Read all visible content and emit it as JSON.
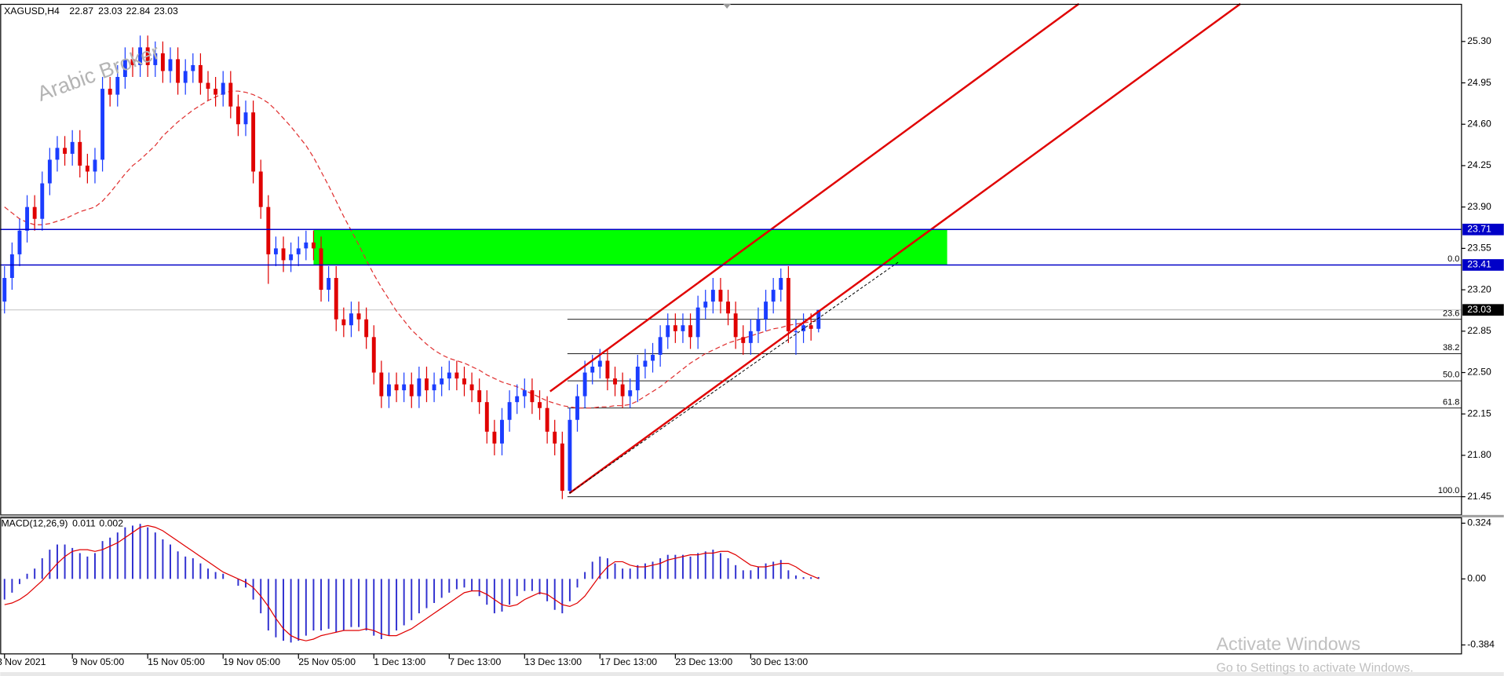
{
  "chart_data": {
    "type": "candlestick",
    "symbol": "XAGUSD,H4",
    "watermark": "Arabic Broker",
    "categories": [
      "3 Nov 2021",
      null,
      null,
      null,
      null,
      null,
      null,
      null,
      null,
      "9 Nov 05:00",
      null,
      null,
      null,
      null,
      null,
      null,
      null,
      null,
      null,
      "15 Nov 05:00",
      null,
      null,
      null,
      null,
      null,
      null,
      null,
      null,
      null,
      "19 Nov 05:00",
      null,
      null,
      null,
      null,
      null,
      null,
      null,
      null,
      null,
      "25 Nov 05:00",
      null,
      null,
      null,
      null,
      null,
      null,
      null,
      null,
      null,
      "1 Dec 13:00",
      null,
      null,
      null,
      null,
      null,
      null,
      null,
      null,
      null,
      "7 Dec 13:00",
      null,
      null,
      null,
      null,
      null,
      null,
      null,
      null,
      null,
      "13 Dec 13:00",
      null,
      null,
      null,
      null,
      null,
      null,
      null,
      null,
      null,
      "17 Dec 13:00",
      null,
      null,
      null,
      null,
      null,
      null,
      null,
      null,
      null,
      "23 Dec 13:00",
      null,
      null,
      null,
      null,
      null,
      null,
      null,
      null,
      null,
      "30 Dec 13:00",
      null,
      null,
      null,
      null,
      null,
      null,
      null,
      null,
      null
    ],
    "open": [
      23.1,
      23.3,
      23.5,
      23.7,
      23.9,
      23.8,
      24.1,
      24.3,
      24.4,
      24.35,
      24.45,
      24.25,
      24.2,
      24.3,
      24.9,
      24.85,
      25,
      25.15,
      25.1,
      25.25,
      25.1,
      25.2,
      25.05,
      25.15,
      24.95,
      25.05,
      25.1,
      24.95,
      24.9,
      24.85,
      24.95,
      24.75,
      24.6,
      24.7,
      24.2,
      23.9,
      23.5,
      23.55,
      23.45,
      23.5,
      23.55,
      23.6,
      23.55,
      23.2,
      23.3,
      22.95,
      22.9,
      23,
      22.95,
      22.8,
      22.5,
      22.3,
      22.4,
      22.35,
      22.4,
      22.3,
      22.45,
      22.35,
      22.4,
      22.45,
      22.5,
      22.45,
      22.4,
      22.35,
      22.25,
      22,
      21.9,
      22.1,
      22.25,
      22.3,
      22.35,
      22.25,
      22.2,
      22,
      21.9,
      21.5,
      22.1,
      22.3,
      22.5,
      22.55,
      22.6,
      22.45,
      22.4,
      22.3,
      22.35,
      22.55,
      22.6,
      22.65,
      22.8,
      22.9,
      22.85,
      22.9,
      22.8,
      23.05,
      23.1,
      23.2,
      23.1,
      23,
      22.8,
      22.75,
      22.85,
      22.95,
      23.1,
      23.2,
      23.3,
      22.85,
      22.85,
      22.9,
      22.87
    ],
    "high": [
      23.4,
      23.6,
      23.8,
      24,
      24,
      24.2,
      24.4,
      24.5,
      24.5,
      24.55,
      24.55,
      24.35,
      24.4,
      25,
      25,
      25.1,
      25.25,
      25.25,
      25.35,
      25.35,
      25.3,
      25.3,
      25.25,
      25.25,
      25.15,
      25.2,
      25.2,
      25.05,
      25,
      25.05,
      25.05,
      24.85,
      24.8,
      24.8,
      24.3,
      24,
      23.65,
      23.65,
      23.6,
      23.65,
      23.7,
      23.7,
      23.65,
      23.4,
      23.4,
      23.05,
      23.1,
      23.1,
      23.05,
      22.9,
      22.6,
      22.5,
      22.5,
      22.5,
      22.5,
      22.55,
      22.55,
      22.5,
      22.55,
      22.6,
      22.6,
      22.55,
      22.5,
      22.45,
      22.35,
      22.1,
      22.2,
      22.35,
      22.4,
      22.45,
      22.45,
      22.35,
      22.3,
      22.1,
      22,
      22.2,
      22.4,
      22.6,
      22.65,
      22.7,
      22.7,
      22.55,
      22.5,
      22.45,
      22.65,
      22.7,
      22.75,
      22.9,
      23,
      23,
      23,
      23,
      23.15,
      23.2,
      23.3,
      23.3,
      23.2,
      23.1,
      22.9,
      22.95,
      23.05,
      23.2,
      23.3,
      23.38,
      23.4,
      22.95,
      23,
      23,
      23.03
    ],
    "low": [
      23,
      23.2,
      23.4,
      23.6,
      23.7,
      23.7,
      24,
      24.2,
      24.25,
      24.25,
      24.15,
      24.1,
      24.1,
      24.2,
      24.75,
      24.75,
      24.9,
      25,
      25,
      25,
      25,
      24.95,
      24.95,
      24.85,
      24.85,
      24.95,
      24.85,
      24.8,
      24.75,
      24.75,
      24.65,
      24.5,
      24.5,
      24.1,
      23.8,
      23.25,
      23.4,
      23.35,
      23.35,
      23.4,
      23.45,
      23.45,
      23.1,
      23.1,
      22.85,
      22.8,
      22.8,
      22.85,
      22.7,
      22.4,
      22.2,
      22.2,
      22.25,
      22.25,
      22.2,
      22.2,
      22.25,
      22.25,
      22.3,
      22.35,
      22.35,
      22.3,
      22.25,
      22.15,
      21.9,
      21.8,
      21.8,
      22,
      22.15,
      22.2,
      22.15,
      22.1,
      21.9,
      21.8,
      21.43,
      21.48,
      22,
      22.2,
      22.4,
      22.45,
      22.35,
      22.3,
      22.2,
      22.2,
      22.25,
      22.45,
      22.5,
      22.55,
      22.7,
      22.75,
      22.75,
      22.7,
      22.7,
      22.95,
      23,
      23,
      22.9,
      22.7,
      22.65,
      22.65,
      22.75,
      22.85,
      23,
      23.1,
      22.75,
      22.65,
      22.75,
      22.77,
      22.84
    ],
    "close": [
      23.3,
      23.5,
      23.7,
      23.9,
      23.8,
      24.1,
      24.3,
      24.4,
      24.35,
      24.45,
      24.25,
      24.2,
      24.3,
      24.9,
      24.85,
      25,
      25.15,
      25.1,
      25.25,
      25.1,
      25.2,
      25.05,
      25.15,
      24.95,
      25.05,
      25.1,
      24.95,
      24.9,
      24.85,
      24.95,
      24.75,
      24.6,
      24.7,
      24.2,
      23.9,
      23.5,
      23.55,
      23.45,
      23.5,
      23.55,
      23.6,
      23.55,
      23.2,
      23.3,
      22.95,
      22.9,
      23,
      22.95,
      22.8,
      22.5,
      22.3,
      22.4,
      22.35,
      22.4,
      22.3,
      22.45,
      22.35,
      22.4,
      22.45,
      22.5,
      22.45,
      22.4,
      22.35,
      22.25,
      22,
      21.9,
      22.1,
      22.25,
      22.3,
      22.35,
      22.25,
      22.2,
      22,
      21.9,
      21.5,
      22.1,
      22.3,
      22.5,
      22.55,
      22.6,
      22.45,
      22.4,
      22.3,
      22.35,
      22.55,
      22.6,
      22.65,
      22.8,
      22.9,
      22.85,
      22.9,
      22.8,
      23.05,
      23.1,
      23.2,
      23.1,
      23,
      22.8,
      22.75,
      22.85,
      22.95,
      23.1,
      23.2,
      23.3,
      22.85,
      22.85,
      22.9,
      22.87,
      23.03
    ],
    "up_color": "#1b3dff",
    "down_color": "#e00000",
    "ma": {
      "color": "#e03030",
      "values": [
        23.9,
        23.85,
        23.8,
        23.77,
        23.75,
        23.75,
        23.76,
        23.78,
        23.8,
        23.83,
        23.86,
        23.88,
        23.9,
        23.95,
        24.02,
        24.1,
        24.18,
        24.25,
        24.3,
        24.36,
        24.42,
        24.5,
        24.56,
        24.62,
        24.67,
        24.72,
        24.76,
        24.8,
        24.83,
        24.86,
        24.88,
        24.88,
        24.87,
        24.85,
        24.82,
        24.78,
        24.72,
        24.65,
        24.58,
        24.5,
        24.42,
        24.32,
        24.2,
        24.08,
        23.95,
        23.82,
        23.7,
        23.58,
        23.45,
        23.33,
        23.22,
        23.12,
        23.02,
        22.94,
        22.86,
        22.8,
        22.74,
        22.69,
        22.65,
        22.62,
        22.6,
        22.58,
        22.55,
        22.52,
        22.48,
        22.45,
        22.42,
        22.4,
        22.38,
        22.35,
        22.32,
        22.29,
        22.26,
        22.24,
        22.22,
        22.21,
        22.2,
        22.2,
        22.2,
        22.21,
        22.21,
        22.22,
        22.22,
        22.23,
        22.26,
        22.3,
        22.34,
        22.38,
        22.43,
        22.48,
        22.53,
        22.58,
        22.62,
        22.66,
        22.69,
        22.72,
        22.75,
        22.77,
        22.79,
        22.81,
        22.83,
        22.85,
        22.87,
        22.88,
        22.9,
        22.91,
        22.92,
        22.93,
        22.94
      ]
    },
    "ylim": [
      21.3,
      25.61
    ],
    "yticks": [
      {
        "value": 25.3,
        "label": "25.30"
      },
      24.95,
      {
        "value": 24.6,
        "label": "24.60"
      },
      24.25,
      {
        "value": 23.9,
        "label": "23.90"
      },
      23.55,
      {
        "value": 23.2,
        "label": "23.20"
      },
      22.85,
      {
        "value": 22.5,
        "label": "22.50"
      },
      22.15,
      {
        "value": 21.8,
        "label": "21.80"
      },
      21.45
    ],
    "price_lines": {
      "color": "#0000c8",
      "values": [
        23.71,
        23.41
      ]
    },
    "zone_color": "#00ff00",
    "last_price": 23.03,
    "fibonacci": {
      "color": "#000000",
      "levels": [
        {
          "label": "0.0",
          "price": 23.41
        },
        {
          "label": "23.6",
          "price": 22.95
        },
        {
          "label": "38.2",
          "price": 22.66
        },
        {
          "label": "50.0",
          "price": 22.43
        },
        {
          "label": "61.8",
          "price": 22.2
        },
        {
          "label": "100.0",
          "price": 21.45
        }
      ]
    },
    "macd": {
      "title": "MACD(12,26,9)",
      "ylim": [
        -0.436,
        0.358
      ],
      "yticks": [
        0.324,
        {
          "value": 0,
          "label": "0.00"
        },
        -0.384
      ],
      "histogram": {
        "color": "#3030d0",
        "values": [
          -0.12,
          -0.08,
          -0.03,
          0.03,
          0.06,
          0.12,
          0.17,
          0.2,
          0.2,
          0.18,
          0.15,
          0.13,
          0.15,
          0.22,
          0.24,
          0.27,
          0.3,
          0.31,
          0.32,
          0.3,
          0.27,
          0.23,
          0.2,
          0.16,
          0.13,
          0.12,
          0.09,
          0.06,
          0.04,
          0.03,
          0,
          -0.04,
          -0.05,
          -0.12,
          -0.2,
          -0.3,
          -0.34,
          -0.36,
          -0.37,
          -0.36,
          -0.33,
          -0.3,
          -0.3,
          -0.29,
          -0.31,
          -0.3,
          -0.28,
          -0.28,
          -0.3,
          -0.33,
          -0.35,
          -0.33,
          -0.3,
          -0.27,
          -0.24,
          -0.2,
          -0.17,
          -0.14,
          -0.11,
          -0.08,
          -0.06,
          -0.05,
          -0.07,
          -0.1,
          -0.15,
          -0.2,
          -0.19,
          -0.15,
          -0.1,
          -0.07,
          -0.07,
          -0.09,
          -0.13,
          -0.18,
          -0.2,
          -0.13,
          -0.05,
          0.04,
          0.1,
          0.13,
          0.12,
          0.09,
          0.06,
          0.06,
          0.08,
          0.09,
          0.1,
          0.12,
          0.14,
          0.14,
          0.14,
          0.13,
          0.15,
          0.16,
          0.17,
          0.15,
          0.12,
          0.08,
          0.05,
          0.05,
          0.07,
          0.09,
          0.1,
          0.11,
          0.05,
          0.02,
          0.01,
          0.01,
          0.011
        ]
      },
      "signal": {
        "color": "#e00000",
        "values": [
          -0.15,
          -0.14,
          -0.12,
          -0.09,
          -0.05,
          -0.01,
          0.04,
          0.09,
          0.13,
          0.16,
          0.17,
          0.17,
          0.16,
          0.17,
          0.19,
          0.21,
          0.24,
          0.27,
          0.3,
          0.31,
          0.3,
          0.28,
          0.25,
          0.22,
          0.19,
          0.16,
          0.13,
          0.1,
          0.07,
          0.04,
          0.02,
          0,
          -0.02,
          -0.05,
          -0.1,
          -0.16,
          -0.23,
          -0.29,
          -0.33,
          -0.35,
          -0.36,
          -0.35,
          -0.33,
          -0.32,
          -0.31,
          -0.3,
          -0.3,
          -0.3,
          -0.29,
          -0.3,
          -0.32,
          -0.33,
          -0.33,
          -0.31,
          -0.29,
          -0.26,
          -0.23,
          -0.2,
          -0.17,
          -0.14,
          -0.11,
          -0.08,
          -0.07,
          -0.07,
          -0.09,
          -0.12,
          -0.15,
          -0.16,
          -0.15,
          -0.12,
          -0.1,
          -0.08,
          -0.09,
          -0.12,
          -0.15,
          -0.16,
          -0.14,
          -0.1,
          -0.04,
          0.02,
          0.07,
          0.1,
          0.1,
          0.08,
          0.07,
          0.07,
          0.08,
          0.09,
          0.11,
          0.12,
          0.13,
          0.14,
          0.14,
          0.15,
          0.15,
          0.16,
          0.16,
          0.14,
          0.11,
          0.08,
          0.07,
          0.07,
          0.08,
          0.09,
          0.09,
          0.07,
          0.04,
          0.02,
          0.002
        ]
      }
    }
  },
  "notice": {
    "title": "Activate Windows",
    "text": "Go to Settings to activate Windows."
  }
}
